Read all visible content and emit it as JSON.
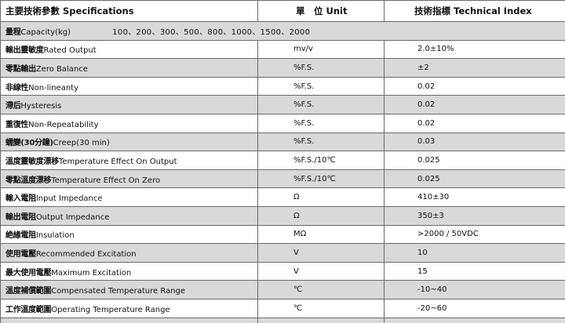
{
  "header": {
    "param_cn": "主要技術參數",
    "param_en": "Specifications",
    "unit_cn": "單　位",
    "unit_en": "Unit",
    "index_cn": "技術指標",
    "index_en": "Technical Index"
  },
  "capacity": {
    "label_cn": "量程",
    "label_en": "Capacity(kg)",
    "values": "100、200、300、500、800、1000、1500、2000"
  },
  "rows": [
    {
      "cn": "輸出靈敏度",
      "en": "Rated Output",
      "unit": "mv/v",
      "value": "2.0±10%"
    },
    {
      "cn": "零點輸出",
      "en": "Zero Balance",
      "unit": "%F.S.",
      "value": "±2"
    },
    {
      "cn": "非線性",
      "en": "Non-lineanty",
      "unit": "%F.S.",
      "value": "0.02"
    },
    {
      "cn": "滯后",
      "en": "Hysteresis",
      "unit": "%F.S.",
      "value": "0.02"
    },
    {
      "cn": "重復性",
      "en": "Non-Repeatability",
      "unit": "%F.S.",
      "value": "0.02"
    },
    {
      "cn": "蠕變(30分鐘)",
      "en": "Creep(30 min)",
      "unit": "%F.S.",
      "value": "0.03"
    },
    {
      "cn": "溫度靈敏度漂移",
      "en": "Temperature Effect On Output",
      "unit": "%F.S./10℃",
      "value": "0.025"
    },
    {
      "cn": "零點溫度漂移",
      "en": "Temperature Effect On Zero",
      "unit": "%F.S./10℃",
      "value": "0.025"
    },
    {
      "cn": "輸入電阻",
      "en": "Input Impedance",
      "unit": "Ω",
      "value": "410±30"
    },
    {
      "cn": "輸出電阻",
      "en": "Output Impedance",
      "unit": "Ω",
      "value": "350±3"
    },
    {
      "cn": "絶緣電阻",
      "en": "Insulation",
      "unit": "MΩ",
      "value": ">2000 / 50VDC"
    },
    {
      "cn": "使用電壓",
      "en": "Recommended Excitation",
      "unit": "V",
      "value": "10"
    },
    {
      "cn": "最大使用電壓",
      "en": "Maximum Excitation",
      "unit": "V",
      "value": "15"
    },
    {
      "cn": "溫度補償範圍",
      "en": "Compensated Temperature Range",
      "unit": "℃",
      "value": "-10~40"
    },
    {
      "cn": "工作溫度範圍",
      "en": "Operating Temperature Range",
      "unit": "℃",
      "value": "-20~60"
    }
  ]
}
